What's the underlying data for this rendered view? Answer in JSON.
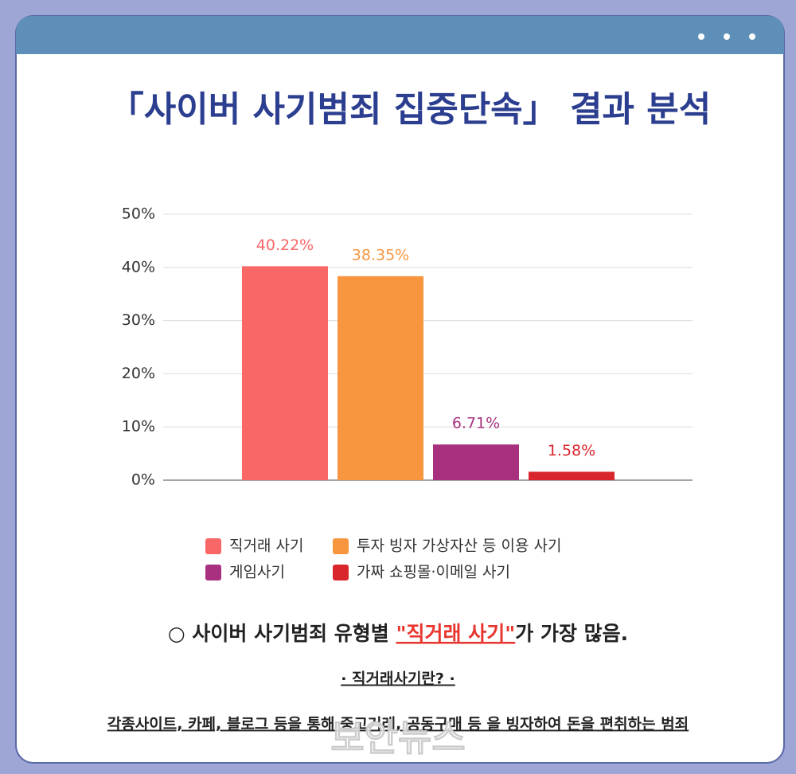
{
  "chart_data": {
    "type": "bar",
    "title": "「사이버 사기범죄 집중단속」 결과 분석",
    "categories": [
      "직거래 사기",
      "투자 빙자 가상자산 등 이용 사기",
      "게임사기",
      "가짜 쇼핑몰·이메일 사기"
    ],
    "values": [
      40.22,
      38.35,
      6.71,
      1.58
    ],
    "value_labels": [
      "40.22%",
      "38.35%",
      "6.71%",
      "1.58%"
    ],
    "colors": [
      "#f96767",
      "#f7963f",
      "#a8317f",
      "#d8262c"
    ],
    "ylim": [
      0,
      50
    ],
    "yticks": [
      {
        "value": 0,
        "label": "0%"
      },
      {
        "value": 10,
        "label": "10%"
      },
      {
        "value": 20,
        "label": "20%"
      },
      {
        "value": 30,
        "label": "30%"
      },
      {
        "value": 40,
        "label": "40%"
      },
      {
        "value": 50,
        "label": "50%"
      }
    ],
    "grid": true,
    "legend": "bottom"
  },
  "note": {
    "prefix": "○ 사이버 사기범죄 유형별 ",
    "highlight": "\"직거래 사기\"",
    "suffix": "가 가장 많음."
  },
  "definition": {
    "heading": "· 직거래사기란? ·",
    "text": "각종사이트, 카페, 블로그 등을 통해 중고거래, 공동구매 등 을 빙자하여 돈을 편취하는 범죄"
  },
  "watermark": "보안뉴스"
}
